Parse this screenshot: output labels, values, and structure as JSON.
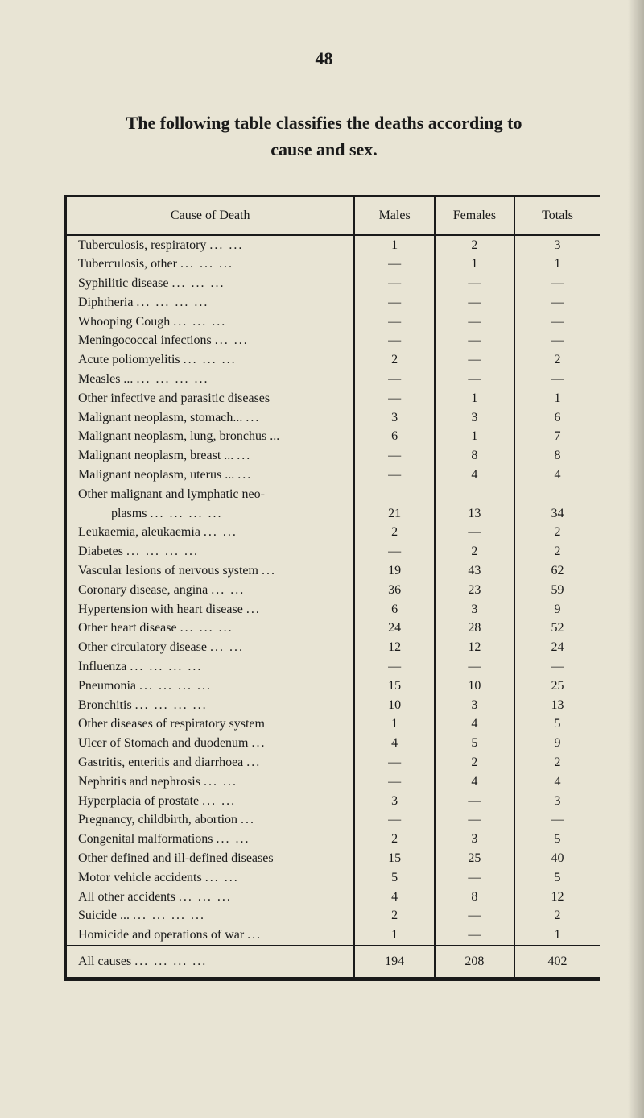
{
  "page_number": "48",
  "title_line1": "The following table classifies the deaths according to",
  "title_line2": "cause and sex.",
  "headers": {
    "cause": "Cause of Death",
    "males": "Males",
    "females": "Females",
    "totals": "Totals"
  },
  "rows": [
    {
      "cause": "Tuberculosis, respiratory",
      "dots": "...    ...",
      "m": "1",
      "f": "2",
      "t": "3",
      "indent": false
    },
    {
      "cause": "Tuberculosis, other",
      "dots": "...    ...    ...",
      "m": "—",
      "f": "1",
      "t": "1",
      "indent": false
    },
    {
      "cause": "Syphilitic disease",
      "dots": "...    ...    ...",
      "m": "—",
      "f": "—",
      "t": "—",
      "indent": false
    },
    {
      "cause": "Diphtheria",
      "dots": "...    ...    ...    ...",
      "m": "—",
      "f": "—",
      "t": "—",
      "indent": false
    },
    {
      "cause": "Whooping Cough",
      "dots": "...    ...    ...",
      "m": "—",
      "f": "—",
      "t": "—",
      "indent": false
    },
    {
      "cause": "Meningococcal infections",
      "dots": "...    ...",
      "m": "—",
      "f": "—",
      "t": "—",
      "indent": false
    },
    {
      "cause": "Acute poliomyelitis",
      "dots": "...    ...    ...",
      "m": "2",
      "f": "—",
      "t": "2",
      "indent": false
    },
    {
      "cause": "Measles ...",
      "dots": "...    ...    ...    ...",
      "m": "—",
      "f": "—",
      "t": "—",
      "indent": false
    },
    {
      "cause": "Other infective and parasitic diseases",
      "dots": "",
      "m": "—",
      "f": "1",
      "t": "1",
      "indent": false
    },
    {
      "cause": "Malignant neoplasm, stomach...",
      "dots": "...",
      "m": "3",
      "f": "3",
      "t": "6",
      "indent": false
    },
    {
      "cause": "Malignant neoplasm, lung, bronchus ...",
      "dots": "",
      "m": "6",
      "f": "1",
      "t": "7",
      "indent": false
    },
    {
      "cause": "Malignant neoplasm, breast ...",
      "dots": "...",
      "m": "—",
      "f": "8",
      "t": "8",
      "indent": false
    },
    {
      "cause": "Malignant neoplasm, uterus ...",
      "dots": "...",
      "m": "—",
      "f": "4",
      "t": "4",
      "indent": false
    },
    {
      "cause": "Other malignant and lymphatic neo-",
      "dots": "",
      "m": "",
      "f": "",
      "t": "",
      "indent": false
    },
    {
      "cause": "plasms",
      "dots": "...    ...    ...    ...",
      "m": "21",
      "f": "13",
      "t": "34",
      "indent": true
    },
    {
      "cause": "Leukaemia, aleukaemia",
      "dots": "...    ...",
      "m": "2",
      "f": "—",
      "t": "2",
      "indent": false
    },
    {
      "cause": "Diabetes",
      "dots": "...    ...    ...    ...",
      "m": "—",
      "f": "2",
      "t": "2",
      "indent": false
    },
    {
      "cause": "Vascular lesions of nervous system",
      "dots": "...",
      "m": "19",
      "f": "43",
      "t": "62",
      "indent": false
    },
    {
      "cause": "Coronary disease, angina",
      "dots": "...    ...",
      "m": "36",
      "f": "23",
      "t": "59",
      "indent": false
    },
    {
      "cause": "Hypertension with heart disease",
      "dots": "...",
      "m": "6",
      "f": "3",
      "t": "9",
      "indent": false
    },
    {
      "cause": "Other heart disease",
      "dots": "...    ...    ...",
      "m": "24",
      "f": "28",
      "t": "52",
      "indent": false
    },
    {
      "cause": "Other circulatory disease",
      "dots": "...    ...",
      "m": "12",
      "f": "12",
      "t": "24",
      "indent": false
    },
    {
      "cause": "Influenza",
      "dots": "...    ...    ...    ...",
      "m": "—",
      "f": "—",
      "t": "—",
      "indent": false
    },
    {
      "cause": "Pneumonia",
      "dots": "...    ...    ...    ...",
      "m": "15",
      "f": "10",
      "t": "25",
      "indent": false
    },
    {
      "cause": "Bronchitis",
      "dots": "...    ...    ...    ...",
      "m": "10",
      "f": "3",
      "t": "13",
      "indent": false
    },
    {
      "cause": "Other diseases of respiratory system",
      "dots": "",
      "m": "1",
      "f": "4",
      "t": "5",
      "indent": false
    },
    {
      "cause": "Ulcer of Stomach and duodenum",
      "dots": "...",
      "m": "4",
      "f": "5",
      "t": "9",
      "indent": false
    },
    {
      "cause": "Gastritis, enteritis and diarrhoea",
      "dots": "...",
      "m": "—",
      "f": "2",
      "t": "2",
      "indent": false
    },
    {
      "cause": "Nephritis and nephrosis",
      "dots": "...    ...",
      "m": "—",
      "f": "4",
      "t": "4",
      "indent": false
    },
    {
      "cause": "Hyperplacia of prostate",
      "dots": "...    ...",
      "m": "3",
      "f": "—",
      "t": "3",
      "indent": false
    },
    {
      "cause": "Pregnancy, childbirth, abortion",
      "dots": "...",
      "m": "—",
      "f": "—",
      "t": "—",
      "indent": false
    },
    {
      "cause": "Congenital malformations",
      "dots": "...    ...",
      "m": "2",
      "f": "3",
      "t": "5",
      "indent": false
    },
    {
      "cause": "Other defined and ill-defined diseases",
      "dots": "",
      "m": "15",
      "f": "25",
      "t": "40",
      "indent": false
    },
    {
      "cause": "Motor vehicle accidents",
      "dots": "...    ...",
      "m": "5",
      "f": "—",
      "t": "5",
      "indent": false
    },
    {
      "cause": "All other accidents",
      "dots": "...    ...    ...",
      "m": "4",
      "f": "8",
      "t": "12",
      "indent": false
    },
    {
      "cause": "Suicide ...",
      "dots": "...    ...    ...    ...",
      "m": "2",
      "f": "—",
      "t": "2",
      "indent": false
    },
    {
      "cause": "Homicide and operations of war",
      "dots": "...",
      "m": "1",
      "f": "—",
      "t": "1",
      "indent": false
    }
  ],
  "footer": {
    "label": "All causes",
    "dots": "...    ...    ...    ...",
    "m": "194",
    "f": "208",
    "t": "402"
  },
  "colors": {
    "background": "#e8e4d4",
    "text": "#1a1a1a",
    "border": "#1a1a1a"
  }
}
